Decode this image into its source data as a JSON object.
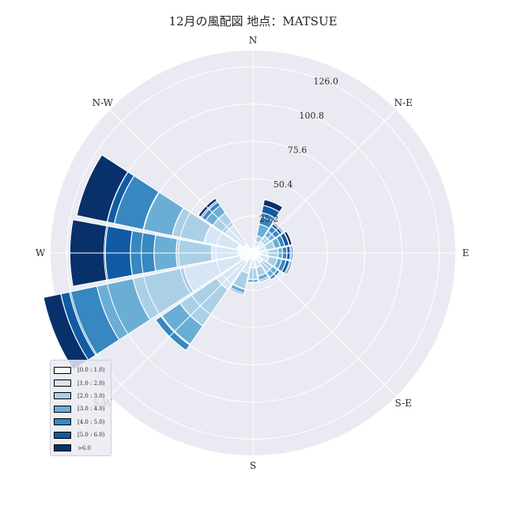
{
  "chart_data": {
    "type": "windrose",
    "title": "12月の風配図 地点：MATSUE",
    "directions": [
      "N",
      "NNE",
      "NE",
      "ENE",
      "E",
      "ESE",
      "SE",
      "SSE",
      "S",
      "SSW",
      "SW",
      "WSW",
      "W",
      "WNW",
      "NW",
      "NNW"
    ],
    "direction_labels": [
      "N",
      "N-E",
      "E",
      "S-E",
      "S",
      "S-W",
      "W",
      "N-W"
    ],
    "radial_ticks": [
      25.2,
      50.4,
      75.6,
      100.8,
      126.0
    ],
    "radial_tick_labels": [
      "25.2",
      "50.4",
      "75.6",
      "100.8",
      "126.0"
    ],
    "rmax": 137,
    "bins": [
      "[0.0 : 1.0)",
      "[1.0 : 2.0)",
      "[2.0 : 3.0)",
      "[3.0 : 4.0)",
      "[4.0 : 5.0)",
      "[5.0 : 6.0)",
      ">6.0"
    ],
    "colors": [
      "#f7fbff",
      "#d6e6f4",
      "#abd0e6",
      "#6aaed6",
      "#3787c0",
      "#105ba4",
      "#08306b"
    ],
    "stacked_cumulative": [
      [
        3,
        3,
        3,
        3,
        3,
        3,
        3
      ],
      [
        4,
        8,
        12,
        20,
        28,
        33,
        37
      ],
      [
        5,
        9,
        14,
        18,
        22,
        24,
        25
      ],
      [
        4,
        9,
        15,
        19,
        22,
        25,
        27
      ],
      [
        5,
        10,
        17,
        20,
        23,
        26,
        27
      ],
      [
        5,
        11,
        17,
        20,
        23,
        26,
        27
      ],
      [
        4,
        8,
        16,
        20,
        22,
        22,
        22
      ],
      [
        5,
        10,
        16,
        19,
        20,
        20,
        20
      ],
      [
        3,
        10,
        18,
        20,
        20,
        20,
        20
      ],
      [
        4,
        14,
        25,
        28,
        29,
        29,
        29
      ],
      [
        7,
        30,
        60,
        75,
        80,
        80,
        80
      ],
      [
        9,
        48,
        83,
        108,
        127,
        133,
        145
      ],
      [
        10,
        28,
        52,
        67,
        83,
        100,
        124
      ],
      [
        11,
        34,
        56,
        76,
        96,
        101,
        122
      ],
      [
        7,
        23,
        33,
        39,
        42,
        43,
        45
      ],
      [
        3,
        3,
        3,
        3,
        3,
        3,
        3
      ]
    ],
    "legend_placement": "lower-left",
    "grid": true
  }
}
